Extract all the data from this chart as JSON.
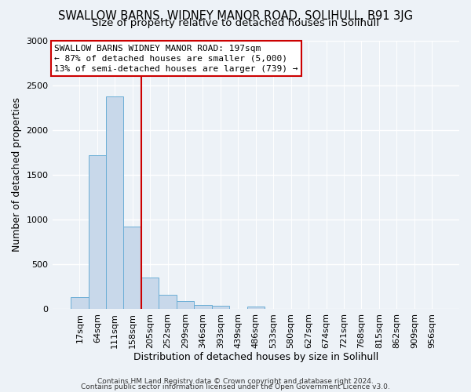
{
  "title": "SWALLOW BARNS, WIDNEY MANOR ROAD, SOLIHULL, B91 3JG",
  "subtitle": "Size of property relative to detached houses in Solihull",
  "xlabel": "Distribution of detached houses by size in Solihull",
  "ylabel": "Number of detached properties",
  "footer_line1": "Contains HM Land Registry data © Crown copyright and database right 2024.",
  "footer_line2": "Contains public sector information licensed under the Open Government Licence v3.0.",
  "bar_labels": [
    "17sqm",
    "64sqm",
    "111sqm",
    "158sqm",
    "205sqm",
    "252sqm",
    "299sqm",
    "346sqm",
    "393sqm",
    "439sqm",
    "486sqm",
    "533sqm",
    "580sqm",
    "627sqm",
    "674sqm",
    "721sqm",
    "768sqm",
    "815sqm",
    "862sqm",
    "909sqm",
    "956sqm"
  ],
  "bar_values": [
    130,
    1720,
    2370,
    920,
    350,
    155,
    85,
    47,
    37,
    0,
    30,
    0,
    0,
    0,
    0,
    0,
    0,
    0,
    0,
    0,
    0
  ],
  "bar_color": "#c8d8ea",
  "bar_edge_color": "#6baed6",
  "vline_color": "#cc0000",
  "annotation_title": "SWALLOW BARNS WIDNEY MANOR ROAD: 197sqm",
  "annotation_line2": "← 87% of detached houses are smaller (5,000)",
  "annotation_line3": "13% of semi-detached houses are larger (739) →",
  "annotation_box_facecolor": "#ffffff",
  "annotation_box_edgecolor": "#cc0000",
  "ylim": [
    0,
    3000
  ],
  "yticks": [
    0,
    500,
    1000,
    1500,
    2000,
    2500,
    3000
  ],
  "bg_color": "#edf2f7",
  "plot_bg_color": "#edf2f7",
  "grid_color": "#ffffff",
  "title_fontsize": 10.5,
  "subtitle_fontsize": 9.5,
  "xlabel_fontsize": 9,
  "ylabel_fontsize": 9,
  "tick_fontsize": 8,
  "annot_fontsize": 8,
  "footer_fontsize": 6.5
}
